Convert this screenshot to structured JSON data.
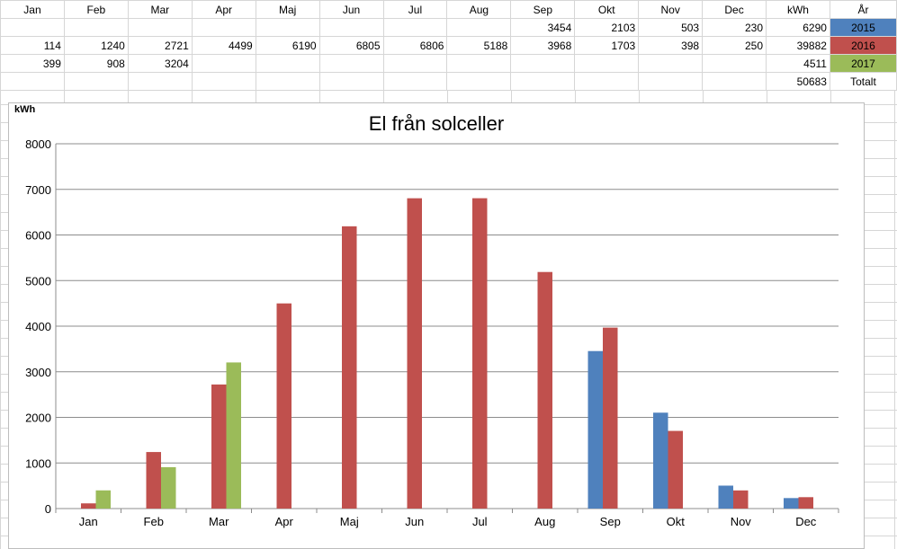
{
  "table": {
    "header": [
      "Jan",
      "Feb",
      "Mar",
      "Apr",
      "Maj",
      "Jun",
      "Jul",
      "Aug",
      "Sep",
      "Okt",
      "Nov",
      "Dec",
      "kWh",
      "År"
    ],
    "rows": [
      {
        "cells": [
          "",
          "",
          "",
          "",
          "",
          "",
          "",
          "",
          "3454",
          "2103",
          "503",
          "230",
          "6290"
        ],
        "year": "2015",
        "color": "#4f81bd"
      },
      {
        "cells": [
          "114",
          "1240",
          "2721",
          "4499",
          "6190",
          "6805",
          "6806",
          "5188",
          "3968",
          "1703",
          "398",
          "250",
          "39882"
        ],
        "year": "2016",
        "color": "#c0504d"
      },
      {
        "cells": [
          "399",
          "908",
          "3204",
          "",
          "",
          "",
          "",
          "",
          "",
          "",
          "",
          "",
          "4511"
        ],
        "year": "2017",
        "color": "#9bbb59"
      },
      {
        "cells": [
          "",
          "",
          "",
          "",
          "",
          "",
          "",
          "",
          "",
          "",
          "",
          "",
          "50683"
        ],
        "year": "Totalt",
        "color": ""
      }
    ]
  },
  "chart_data": {
    "type": "bar",
    "title": "El från solceller",
    "ylabel": "kWh",
    "xlabel": "",
    "ylim": [
      0,
      8000
    ],
    "yticks": [
      "0",
      "1000",
      "2000",
      "3000",
      "4000",
      "5000",
      "6000",
      "7000",
      "8000"
    ],
    "categories": [
      "Jan",
      "Feb",
      "Mar",
      "Apr",
      "Maj",
      "Jun",
      "Jul",
      "Aug",
      "Sep",
      "Okt",
      "Nov",
      "Dec"
    ],
    "series": [
      {
        "name": "2015",
        "color": "#4f81bd",
        "values": [
          null,
          null,
          null,
          null,
          null,
          null,
          null,
          null,
          3454,
          2103,
          503,
          230
        ]
      },
      {
        "name": "2016",
        "color": "#c0504d",
        "values": [
          114,
          1240,
          2721,
          4499,
          6190,
          6805,
          6806,
          5188,
          3968,
          1703,
          398,
          250
        ]
      },
      {
        "name": "2017",
        "color": "#9bbb59",
        "values": [
          399,
          908,
          3204,
          null,
          null,
          null,
          null,
          null,
          null,
          null,
          null,
          null
        ]
      }
    ],
    "grid": true,
    "legend": "none"
  }
}
